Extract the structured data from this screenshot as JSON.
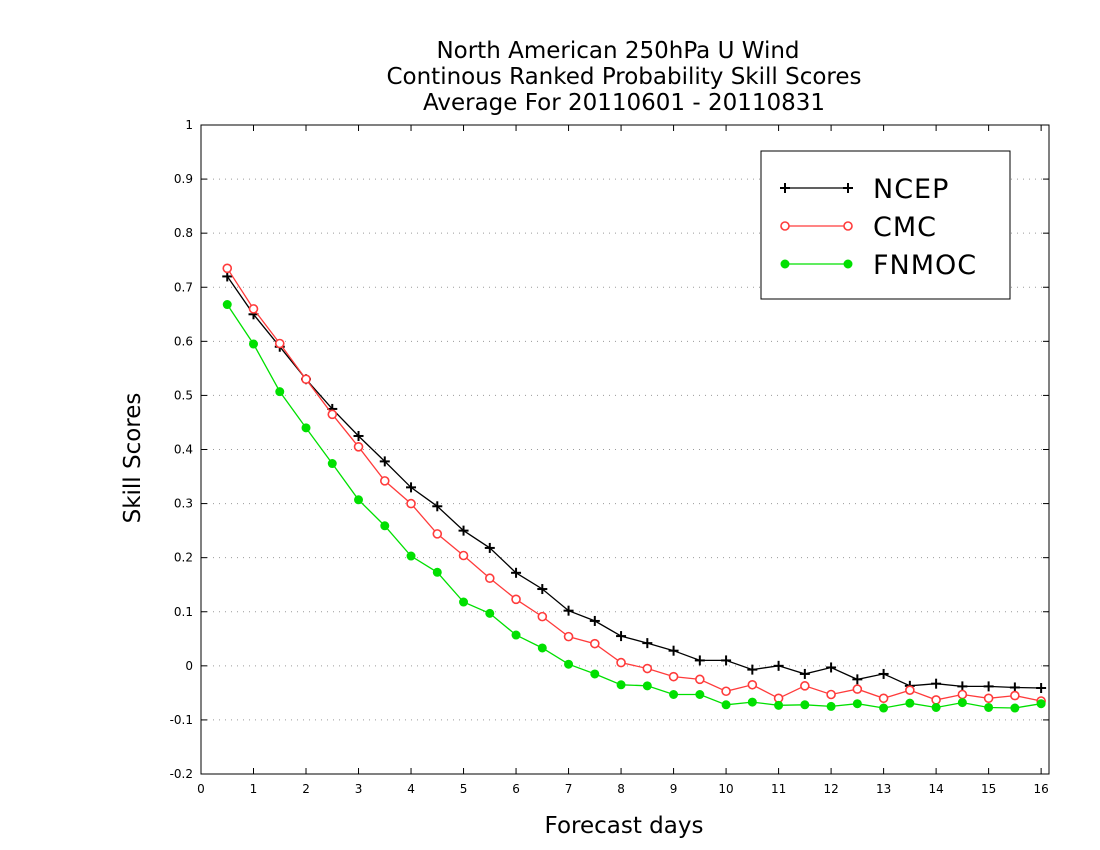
{
  "chart_data": {
    "type": "line",
    "title": [
      "North American 250hPa U Wind",
      "Continous Ranked Probability Skill Scores",
      "Average For 20110601 - 20110831"
    ],
    "xlabel": "Forecast days",
    "ylabel": "Skill Scores",
    "xlim": [
      0,
      16.15
    ],
    "ylim": [
      -0.2,
      1
    ],
    "x_ticks": [
      0,
      1,
      2,
      3,
      4,
      5,
      6,
      7,
      8,
      9,
      10,
      11,
      12,
      13,
      14,
      15,
      16
    ],
    "y_ticks": [
      -0.2,
      -0.1,
      0,
      0.1,
      0.2,
      0.3,
      0.4,
      0.5,
      0.6,
      0.7,
      0.8,
      0.9,
      1
    ],
    "y_tick_labels": [
      "-0.2",
      "-0.1",
      "0",
      "0.1",
      "0.2",
      "0.3",
      "0.4",
      "0.5",
      "0.6",
      "0.7",
      "0.8",
      "0.9",
      "1"
    ],
    "grid": true,
    "legend_position": "top-right",
    "x": [
      0.5,
      1,
      1.5,
      2,
      2.5,
      3,
      3.5,
      4,
      4.5,
      5,
      5.5,
      6,
      6.5,
      7,
      7.5,
      8,
      8.5,
      9,
      9.5,
      10,
      10.5,
      11,
      11.5,
      12,
      12.5,
      13,
      13.5,
      14,
      14.5,
      15,
      15.5,
      16
    ],
    "series": [
      {
        "name": "NCEP",
        "color": "#000000",
        "marker": "plus",
        "values": [
          0.72,
          0.65,
          0.59,
          0.53,
          0.475,
          0.425,
          0.378,
          0.33,
          0.295,
          0.25,
          0.218,
          0.172,
          0.142,
          0.102,
          0.083,
          0.055,
          0.042,
          0.028,
          0.01,
          0.01,
          -0.007,
          0.0,
          -0.015,
          -0.003,
          -0.025,
          -0.015,
          -0.037,
          -0.033,
          -0.038,
          -0.038,
          -0.04,
          -0.041
        ]
      },
      {
        "name": "CMC",
        "color": "#ff3b3b",
        "marker": "open-circle",
        "values": [
          0.735,
          0.66,
          0.596,
          0.53,
          0.465,
          0.405,
          0.342,
          0.3,
          0.244,
          0.204,
          0.162,
          0.123,
          0.091,
          0.054,
          0.041,
          0.006,
          -0.005,
          -0.02,
          -0.025,
          -0.047,
          -0.035,
          -0.06,
          -0.037,
          -0.053,
          -0.043,
          -0.06,
          -0.045,
          -0.063,
          -0.053,
          -0.06,
          -0.055,
          -0.065
        ]
      },
      {
        "name": "FNMOC",
        "color": "#00e000",
        "marker": "filled-circle",
        "values": [
          0.668,
          0.595,
          0.507,
          0.44,
          0.374,
          0.307,
          0.259,
          0.203,
          0.173,
          0.118,
          0.097,
          0.057,
          0.033,
          0.003,
          -0.015,
          -0.035,
          -0.037,
          -0.053,
          -0.053,
          -0.072,
          -0.067,
          -0.073,
          -0.072,
          -0.075,
          -0.07,
          -0.078,
          -0.069,
          -0.077,
          -0.068,
          -0.077,
          -0.078,
          -0.07
        ]
      }
    ]
  }
}
